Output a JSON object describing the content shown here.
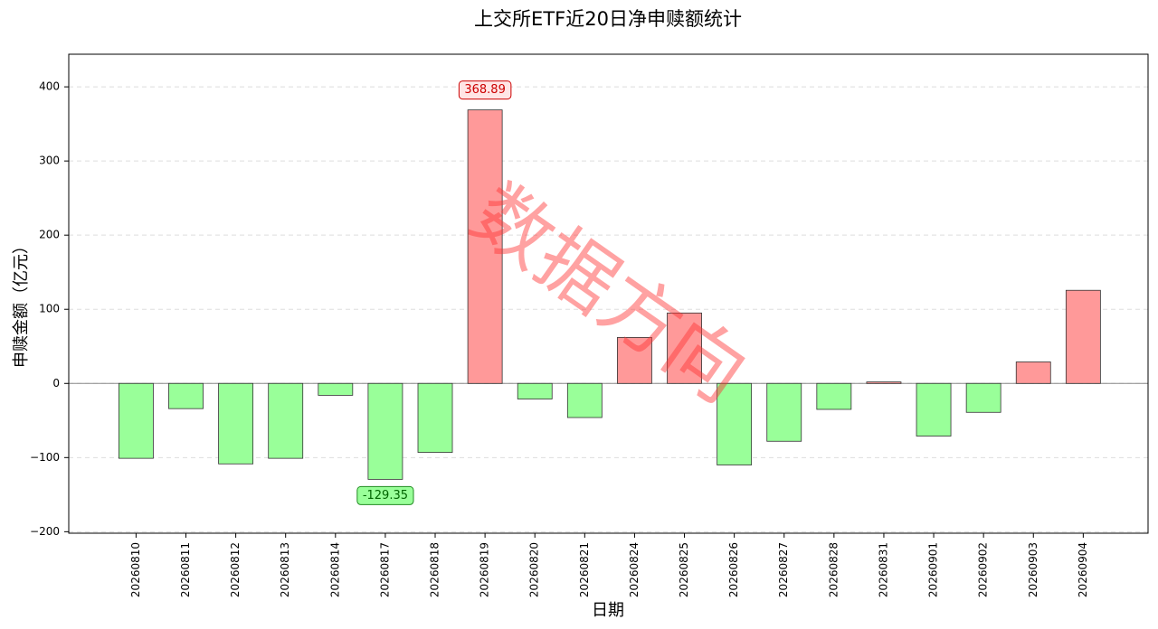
{
  "chart_data": {
    "type": "bar",
    "title": "上交所ETF近20日净申赎额统计",
    "xlabel": "日期",
    "ylabel": "申赎金额（亿元）",
    "watermark": "数据方向",
    "categories": [
      "20260810",
      "20260811",
      "20260812",
      "20260813",
      "20260814",
      "20260817",
      "20260818",
      "20260819",
      "20260820",
      "20260821",
      "20260824",
      "20260825",
      "20260826",
      "20260827",
      "20260828",
      "20260831",
      "20260901",
      "20260902",
      "20260903",
      "20260904"
    ],
    "values": [
      -101,
      -34,
      -108.5,
      -101,
      -16,
      -129.35,
      -93,
      368.89,
      -21,
      -46,
      62,
      95,
      -110,
      -78,
      -35,
      2,
      -71,
      -39,
      29,
      125.6
    ],
    "positive_color": "#ff9999",
    "negative_color": "#99ff99",
    "annotate_extremes": true,
    "ylim": [
      -202,
      444
    ],
    "yticks": [
      {
        "value": -200,
        "label": "−200"
      },
      {
        "value": -100,
        "label": "−100"
      },
      0,
      100,
      200,
      300,
      400
    ],
    "grid": true
  }
}
